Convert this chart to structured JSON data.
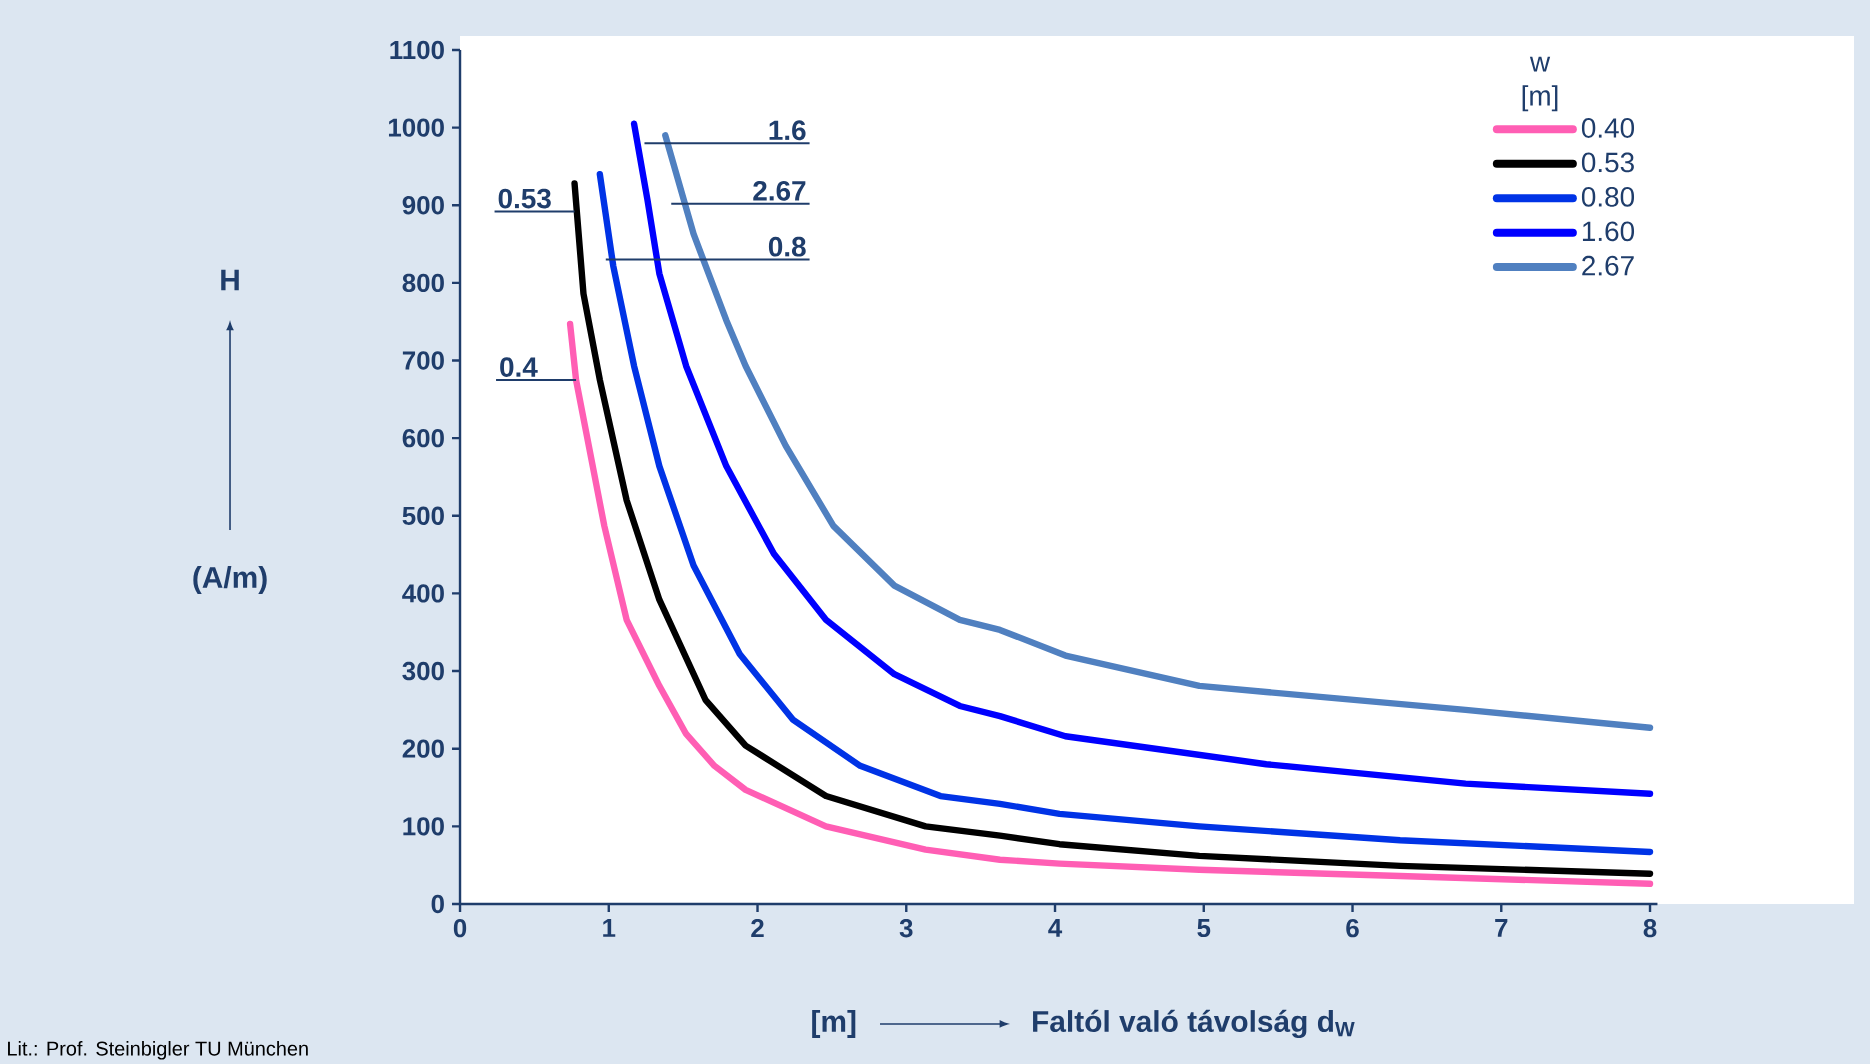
{
  "chart_data": {
    "type": "line",
    "xlabel": "Faltól való távolság d$_{W}$",
    "legend_title": "w [m]",
    "legend": "top right",
    "xlim": [
      0,
      8.05
    ],
    "ylim": [
      0,
      1100
    ],
    "xticks": [
      0,
      1,
      2,
      3,
      4,
      5,
      6,
      7,
      8
    ],
    "yticks": [
      0,
      100,
      200,
      300,
      400,
      500,
      600,
      700,
      800,
      900,
      1000,
      1100
    ],
    "series": [
      {
        "name": "0.40",
        "color": "#ff5eb4",
        "x": [
          0.74,
          0.78,
          0.97,
          1.12,
          1.34,
          1.52,
          1.71,
          1.92,
          2.46,
          3.13,
          3.63,
          4.03,
          4.97,
          6.32,
          8.0
        ],
        "values": [
          747,
          675,
          487,
          366,
          281,
          219,
          178,
          147,
          100,
          70,
          57,
          52,
          44,
          36,
          26
        ]
      },
      {
        "name": "0.53",
        "color": "#000000",
        "x": [
          0.77,
          0.83,
          0.94,
          1.12,
          1.34,
          1.65,
          1.92,
          2.46,
          3.13,
          3.63,
          4.03,
          4.97,
          6.32,
          8.0
        ],
        "values": [
          928,
          786,
          675,
          520,
          392,
          263,
          204,
          139,
          100,
          88,
          77,
          62,
          49,
          39
        ]
      },
      {
        "name": "0.80",
        "color": "#0033e6",
        "x": [
          0.94,
          1.03,
          1.17,
          1.34,
          1.57,
          1.88,
          2.24,
          2.69,
          3.23,
          3.63,
          4.03,
          4.97,
          6.32,
          8.0
        ],
        "values": [
          940,
          822,
          693,
          564,
          436,
          322,
          237,
          178,
          139,
          129,
          116,
          100,
          82,
          67
        ]
      },
      {
        "name": "1.60",
        "color": "#0000ff",
        "x": [
          1.17,
          1.26,
          1.34,
          1.52,
          1.79,
          2.11,
          2.46,
          2.92,
          3.36,
          3.63,
          4.07,
          5.42,
          6.76,
          8.0
        ],
        "values": [
          1005,
          907,
          812,
          693,
          564,
          451,
          366,
          296,
          255,
          242,
          216,
          180,
          155,
          142
        ]
      },
      {
        "name": "2.67",
        "color": "#5080c0",
        "x": [
          1.38,
          1.57,
          1.79,
          1.92,
          2.19,
          2.51,
          2.92,
          3.36,
          3.63,
          4.07,
          4.97,
          5.42,
          6.76,
          8.0
        ],
        "values": [
          990,
          863,
          752,
          693,
          590,
          487,
          410,
          366,
          353,
          320,
          281,
          273,
          250,
          227
        ]
      }
    ],
    "annotations": [
      {
        "text": "0.4",
        "x": 0.78,
        "y": 675
      },
      {
        "text": "0.53",
        "x": 0.77,
        "y": 892
      },
      {
        "text": "0.8",
        "x": 0.98,
        "y": 830
      },
      {
        "text": "1.6",
        "x": 1.24,
        "y": 980
      },
      {
        "text": "2.67",
        "x": 1.42,
        "y": 902
      },
      "H",
      "(A/m)",
      "[m]",
      "Lit.: Prof. Steinbigler TU München"
    ]
  }
}
